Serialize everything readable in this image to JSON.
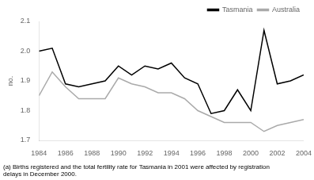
{
  "chart_data": {
    "type": "line",
    "x": [
      1984,
      1985,
      1986,
      1987,
      1988,
      1989,
      1990,
      1991,
      1992,
      1993,
      1994,
      1995,
      1996,
      1997,
      1998,
      1999,
      2000,
      2001,
      2002,
      2003,
      2004
    ],
    "series": [
      {
        "name": "Tasmania",
        "color": "#000000",
        "values": [
          2.0,
          2.01,
          1.89,
          1.88,
          1.89,
          1.9,
          1.95,
          1.92,
          1.95,
          1.94,
          1.96,
          1.91,
          1.89,
          1.79,
          1.8,
          1.87,
          1.8,
          2.07,
          1.89,
          1.9,
          1.92
        ]
      },
      {
        "name": "Australia",
        "color": "#aaaaaa",
        "values": [
          1.85,
          1.93,
          1.88,
          1.84,
          1.84,
          1.84,
          1.91,
          1.89,
          1.88,
          1.86,
          1.86,
          1.84,
          1.8,
          1.78,
          1.76,
          1.76,
          1.76,
          1.73,
          1.75,
          1.76,
          1.77
        ]
      }
    ],
    "y_label": "no.",
    "footnote": "(a) Births registered and the total fertility rate for Tasmania in 2001 were affected by registration\ndelays in December 2000.",
    "xlim": [
      1984,
      2004
    ],
    "xticks": [
      1984,
      1986,
      1988,
      1990,
      1992,
      1994,
      1996,
      1998,
      2000,
      2002,
      2004
    ],
    "ylim": [
      1.7,
      2.1
    ],
    "yticks": [
      1.7,
      1.8,
      1.9,
      {
        "value": 2.0,
        "label": "2.0"
      },
      2.1
    ],
    "grid": false,
    "legend": "upper right"
  }
}
